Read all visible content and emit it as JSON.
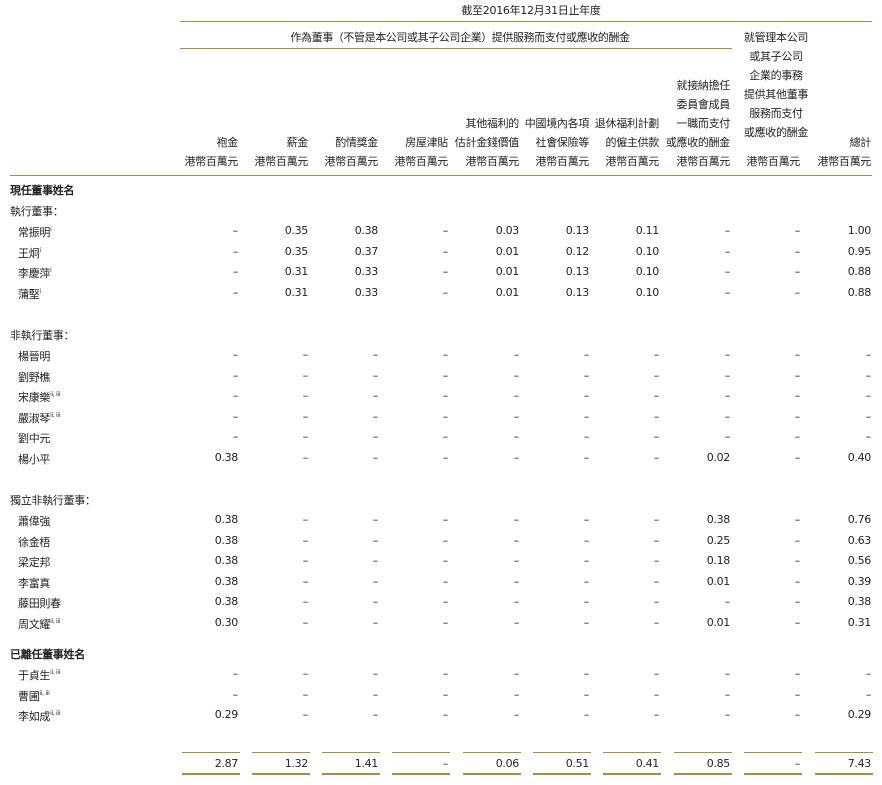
{
  "header": {
    "period": "截至2016年12月31日止年度",
    "group_services": "作為董事（不管是本公司或其子公司企業）提供服務而支付或應收的酬金",
    "group_management": [
      "就管理本公司",
      "或其子公司",
      "企業的事務",
      "提供其他董事",
      "服務而支付",
      "或應收的酬金"
    ]
  },
  "columns": [
    {
      "key": "fee",
      "lines": [
        "袍金",
        "港幣百萬元"
      ]
    },
    {
      "key": "salary",
      "lines": [
        "薪金",
        "港幣百萬元"
      ]
    },
    {
      "key": "bonus",
      "lines": [
        "酌情獎金",
        "港幣百萬元"
      ]
    },
    {
      "key": "housing",
      "lines": [
        "房屋津貼",
        "港幣百萬元"
      ]
    },
    {
      "key": "other_benefits",
      "lines": [
        "其他福利的",
        "估計金錢價值",
        "港幣百萬元"
      ]
    },
    {
      "key": "social_insurance",
      "lines": [
        "中國境內各項",
        "社會保險等",
        "港幣百萬元"
      ]
    },
    {
      "key": "retirement",
      "lines": [
        "退休福利計劃",
        "的僱主供款",
        "港幣百萬元"
      ]
    },
    {
      "key": "takeover",
      "lines": [
        "就接納擔任",
        "委員會成員",
        "一職而支付",
        "或應收的酬金",
        "港幣百萬元"
      ]
    },
    {
      "key": "management",
      "lines": [
        "港幣百萬元"
      ]
    },
    {
      "key": "total",
      "lines": [
        "總計",
        "港幣百萬元"
      ]
    }
  ],
  "sections": [
    {
      "title": "現任董事姓名",
      "bold": true,
      "groups": [
        {
          "label": "執行董事：",
          "rows": [
            {
              "name": "常振明",
              "sup": "i",
              "values": [
                "–",
                "0.35",
                "0.38",
                "–",
                "0.03",
                "0.13",
                "0.11",
                "–",
                "–",
                "1.00"
              ]
            },
            {
              "name": "王炯",
              "sup": "i",
              "values": [
                "–",
                "0.35",
                "0.37",
                "–",
                "0.01",
                "0.12",
                "0.10",
                "–",
                "–",
                "0.95"
              ]
            },
            {
              "name": "李慶萍",
              "sup": "i",
              "values": [
                "–",
                "0.31",
                "0.33",
                "–",
                "0.01",
                "0.13",
                "0.10",
                "–",
                "–",
                "0.88"
              ]
            },
            {
              "name": "蒲堅",
              "sup": "i",
              "values": [
                "–",
                "0.31",
                "0.33",
                "–",
                "0.01",
                "0.13",
                "0.10",
                "–",
                "–",
                "0.88"
              ]
            }
          ]
        },
        {
          "label": "非執行董事：",
          "rows": [
            {
              "name": "楊晉明",
              "sup": "",
              "values": [
                "–",
                "–",
                "–",
                "–",
                "–",
                "–",
                "–",
                "–",
                "–",
                "–"
              ]
            },
            {
              "name": "劉野樵",
              "sup": "",
              "values": [
                "–",
                "–",
                "–",
                "–",
                "–",
                "–",
                "–",
                "–",
                "–",
                "–"
              ]
            },
            {
              "name": "宋康樂",
              "sup": "ii, iii",
              "values": [
                "–",
                "–",
                "–",
                "–",
                "–",
                "–",
                "–",
                "–",
                "–",
                "–"
              ]
            },
            {
              "name": "嚴淑琴",
              "sup": "ii, iii",
              "values": [
                "–",
                "–",
                "–",
                "–",
                "–",
                "–",
                "–",
                "–",
                "–",
                "–"
              ]
            },
            {
              "name": "劉中元",
              "sup": "",
              "values": [
                "–",
                "–",
                "–",
                "–",
                "–",
                "–",
                "–",
                "–",
                "–",
                "–"
              ]
            },
            {
              "name": "楊小平",
              "sup": "",
              "values": [
                "0.38",
                "–",
                "–",
                "–",
                "–",
                "–",
                "–",
                "0.02",
                "–",
                "0.40"
              ]
            }
          ]
        },
        {
          "label": "獨立非執行董事：",
          "rows": [
            {
              "name": "蕭偉強",
              "sup": "",
              "values": [
                "0.38",
                "–",
                "–",
                "–",
                "–",
                "–",
                "–",
                "0.38",
                "–",
                "0.76"
              ]
            },
            {
              "name": "徐金梧",
              "sup": "",
              "values": [
                "0.38",
                "–",
                "–",
                "–",
                "–",
                "–",
                "–",
                "0.25",
                "–",
                "0.63"
              ]
            },
            {
              "name": "梁定邦",
              "sup": "",
              "values": [
                "0.38",
                "–",
                "–",
                "–",
                "–",
                "–",
                "–",
                "0.18",
                "–",
                "0.56"
              ]
            },
            {
              "name": "李富真",
              "sup": "",
              "values": [
                "0.38",
                "–",
                "–",
                "–",
                "–",
                "–",
                "–",
                "0.01",
                "–",
                "0.39"
              ]
            },
            {
              "name": "藤田則春",
              "sup": "",
              "values": [
                "0.38",
                "–",
                "–",
                "–",
                "–",
                "–",
                "–",
                "–",
                "–",
                "0.38"
              ]
            },
            {
              "name": "周文耀",
              "sup": "ii, iii",
              "values": [
                "0.30",
                "–",
                "–",
                "–",
                "–",
                "–",
                "–",
                "0.01",
                "–",
                "0.31"
              ]
            }
          ]
        }
      ]
    },
    {
      "title": "已離任董事姓名",
      "bold": true,
      "groups": [
        {
          "label": "",
          "rows": [
            {
              "name": "于貞生",
              "sup": "ii, iii",
              "values": [
                "–",
                "–",
                "–",
                "–",
                "–",
                "–",
                "–",
                "–",
                "–",
                "–"
              ]
            },
            {
              "name": "曹圃",
              "sup": "ii, iii",
              "values": [
                "–",
                "–",
                "–",
                "–",
                "–",
                "–",
                "–",
                "–",
                "–",
                "–"
              ]
            },
            {
              "name": "李如成",
              "sup": "ii, iii",
              "values": [
                "0.29",
                "–",
                "–",
                "–",
                "–",
                "–",
                "–",
                "–",
                "–",
                "0.29"
              ]
            }
          ]
        }
      ]
    }
  ],
  "totals": [
    "2.87",
    "1.32",
    "1.41",
    "–",
    "0.06",
    "0.51",
    "0.41",
    "0.85",
    "–",
    "7.43"
  ]
}
